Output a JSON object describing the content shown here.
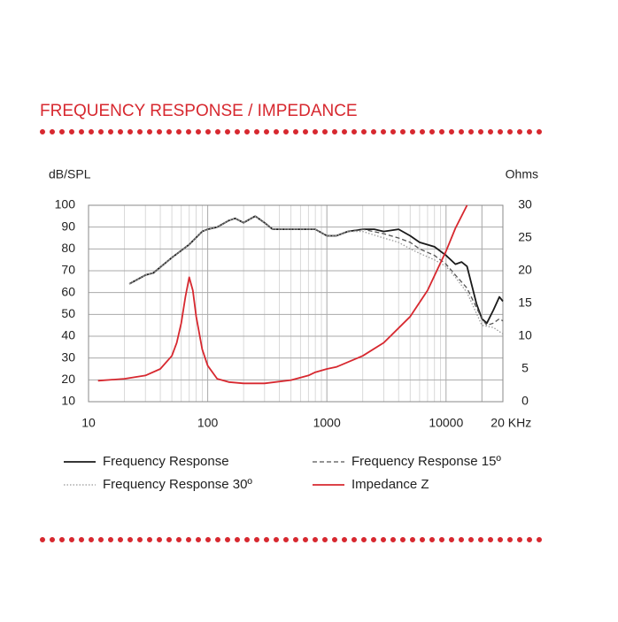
{
  "chart_data": {
    "type": "line",
    "title": "FREQUENCY RESPONSE / IMPEDANCE",
    "y_label": "dB/SPL",
    "y2_label": "Ohms",
    "xscale": "log",
    "xlim": [
      10,
      30000
    ],
    "xticks": [
      10,
      100,
      1000,
      10000,
      {
        "value": 20000,
        "label": "20 KHz"
      }
    ],
    "xminor": [
      20,
      30,
      40,
      50,
      60,
      70,
      80,
      90,
      200,
      300,
      400,
      500,
      600,
      700,
      800,
      900,
      2000,
      3000,
      4000,
      5000,
      6000,
      7000,
      8000,
      9000,
      20000
    ],
    "ylim": [
      10,
      100
    ],
    "yticks": [
      10,
      20,
      30,
      40,
      50,
      60,
      70,
      80,
      90,
      100
    ],
    "y2lim": [
      0,
      30
    ],
    "y2ticks": [
      0,
      5,
      10,
      15,
      20,
      25,
      30
    ],
    "grid": true,
    "series": [
      {
        "name": "Frequency Response",
        "color": "#1a1a1a",
        "dash": "solid",
        "x": [
          22,
          30,
          35,
          50,
          70,
          90,
          100,
          120,
          150,
          170,
          200,
          250,
          300,
          350,
          500,
          600,
          800,
          1000,
          1200,
          1500,
          2000,
          2500,
          3000,
          4000,
          5000,
          6000,
          8000,
          10000,
          12000,
          13500,
          15000,
          18000,
          20000,
          22000,
          25000,
          28000,
          30000
        ],
        "values": [
          64,
          68,
          69,
          76,
          82,
          88,
          89,
          90,
          93,
          94,
          92,
          95,
          92,
          89,
          89,
          89,
          89,
          86,
          86,
          88,
          89,
          89,
          88,
          89,
          86,
          83,
          81,
          77,
          73,
          74,
          72,
          55,
          48,
          46,
          52,
          58,
          56
        ]
      },
      {
        "name": "Frequency Response 15º",
        "color": "#555555",
        "dash": "dashed",
        "x": [
          22,
          30,
          35,
          50,
          70,
          90,
          100,
          120,
          150,
          170,
          200,
          250,
          300,
          350,
          500,
          600,
          800,
          1000,
          1200,
          1500,
          2000,
          3000,
          4000,
          5000,
          6000,
          8000,
          10000,
          12000,
          15000,
          20000,
          22000,
          25000,
          28000,
          30000
        ],
        "values": [
          64,
          68,
          69,
          76,
          82,
          88,
          89,
          90,
          93,
          94,
          92,
          95,
          92,
          89,
          89,
          89,
          89,
          86,
          86,
          88,
          89,
          87,
          85,
          83,
          80,
          77,
          73,
          68,
          62,
          48,
          45,
          46,
          48,
          47
        ]
      },
      {
        "name": "Frequency Response 30º",
        "color": "#999999",
        "dash": "dotted",
        "x": [
          22,
          30,
          35,
          50,
          70,
          90,
          100,
          120,
          150,
          170,
          200,
          250,
          300,
          350,
          500,
          600,
          800,
          1000,
          1200,
          1500,
          2000,
          3000,
          4000,
          5000,
          6000,
          8000,
          10000,
          12000,
          15000,
          20000,
          25000,
          30000
        ],
        "values": [
          64,
          68,
          69,
          76,
          82,
          88,
          89,
          90,
          93,
          94,
          92,
          95,
          92,
          89,
          89,
          89,
          89,
          86,
          86,
          88,
          88,
          85,
          83,
          80,
          78,
          75,
          72,
          67,
          60,
          45,
          44,
          41
        ]
      },
      {
        "name": "Impedance Z",
        "color": "#d7282f",
        "dash": "solid",
        "axis": "y2",
        "x": [
          12,
          20,
          30,
          40,
          50,
          55,
          60,
          65,
          70,
          75,
          80,
          90,
          100,
          120,
          150,
          200,
          300,
          500,
          700,
          800,
          1000,
          1200,
          2000,
          3000,
          5000,
          7000,
          10000,
          12000,
          15000
        ],
        "values": [
          3.2,
          3.5,
          4,
          5,
          7,
          9,
          12,
          16,
          19,
          17,
          13,
          8,
          5.5,
          3.5,
          3,
          2.8,
          2.8,
          3.3,
          4,
          4.5,
          5,
          5.3,
          7,
          9,
          13,
          17,
          23,
          26.5,
          30
        ]
      }
    ]
  }
}
